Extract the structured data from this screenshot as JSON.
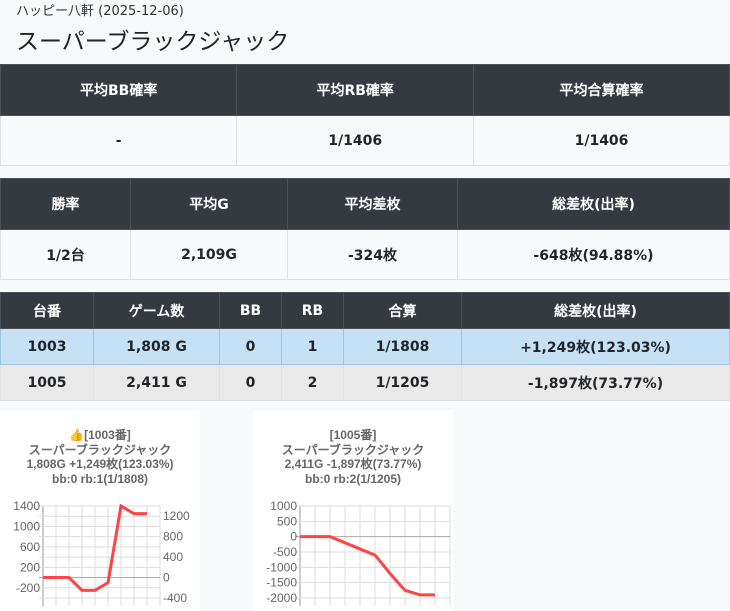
{
  "header": {
    "subtitle": "ハッピー八軒 (2025-12-06)",
    "title": "スーパーブラックジャック"
  },
  "prob_table": {
    "headers": [
      "平均BB確率",
      "平均RB確率",
      "平均合算確率"
    ],
    "values": [
      "-",
      "1/1406",
      "1/1406"
    ]
  },
  "summary_table": {
    "headers": [
      "勝率",
      "平均G",
      "平均差枚",
      "総差枚(出率)"
    ],
    "values": [
      "1/2台",
      "2,109G",
      "-324枚",
      "-648枚(94.88%)"
    ]
  },
  "machine_table": {
    "headers": [
      "台番",
      "ゲーム数",
      "BB",
      "RB",
      "合算",
      "総差枚(出率)"
    ],
    "rows": [
      [
        "1003",
        "1,808 G",
        "0",
        "1",
        "1/1808",
        "+1,249枚(123.03%)"
      ],
      [
        "1005",
        "2,411 G",
        "0",
        "2",
        "1/1205",
        "-1,897枚(73.77%)"
      ]
    ]
  },
  "cards": [
    {
      "lines": [
        "👍[1003番]",
        "スーパーブラックジャック",
        "1,808G +1,249枚(123.03%)",
        "bb:0 rb:1(1/1808)"
      ]
    },
    {
      "lines": [
        "[1005番]",
        "スーパーブラックジャック",
        "2,411G -1,897枚(73.77%)",
        "bb:0 rb:2(1/1205)"
      ]
    }
  ],
  "chart_data": [
    {
      "type": "line",
      "ylim": [
        -400,
        1400
      ],
      "yticks": [
        "1400",
        "1200",
        "1000",
        "800",
        "600",
        "400",
        "200",
        "0",
        "-200",
        "-400"
      ],
      "values": [
        0,
        0,
        0,
        -250,
        -250,
        -100,
        1400,
        1250,
        1250
      ],
      "color": "#ff4444",
      "grid": true
    },
    {
      "type": "line",
      "ylim": [
        -2000,
        1000
      ],
      "yticks": [
        "1000",
        "500",
        "0",
        "-500",
        "-1000",
        "-1500",
        "-2000"
      ],
      "values": [
        0,
        0,
        0,
        -200,
        -400,
        -600,
        -1200,
        -1750,
        -1900,
        -1900
      ],
      "color": "#ff4444",
      "grid": true
    }
  ]
}
